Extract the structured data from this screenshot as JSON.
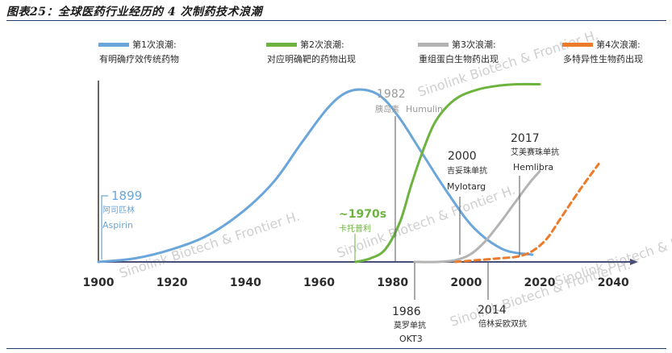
{
  "figure": {
    "title": "图表25：全球医药行业经历的 4 次制药技术浪潮"
  },
  "chart_data": {
    "type": "line",
    "title": "全球医药行业经历的 4 次制药技术浪潮",
    "xlim": [
      1900,
      2045
    ],
    "ylim": [
      0,
      100
    ],
    "x_ticks": [
      1900,
      1920,
      1940,
      1960,
      1980,
      2000,
      2020,
      2040
    ],
    "grid": false,
    "series": [
      {
        "name": "第1次浪潮:",
        "description": "有明确疗效传统药物",
        "color": "#6aa6d9",
        "dash": "solid",
        "x": [
          1900,
          1910,
          1920,
          1930,
          1940,
          1948,
          1955,
          1962,
          1967,
          1972,
          1977,
          1982,
          1988,
          1995,
          2002,
          2010,
          2018
        ],
        "y": [
          0,
          2,
          7,
          15,
          29,
          45,
          65,
          84,
          93,
          95,
          91,
          79,
          60,
          38,
          19,
          7,
          4
        ]
      },
      {
        "name": "第2次浪潮:",
        "description": "对应明确靶的药物出现",
        "color": "#6db33f",
        "dash": "solid",
        "x": [
          1970,
          1974,
          1978,
          1982,
          1985,
          1988,
          1991,
          1994,
          1998,
          2003,
          2008,
          2014,
          2020
        ],
        "y": [
          0,
          2,
          7,
          22,
          42,
          60,
          75,
          84,
          91,
          95,
          97,
          98,
          98
        ]
      },
      {
        "name": "第3次浪潮:",
        "description": "重组蛋白生物药出现",
        "color": "#b3b3b3",
        "dash": "solid",
        "x": [
          1986,
          1992,
          1997,
          2001,
          2005,
          2009,
          2013,
          2017,
          2020
        ],
        "y": [
          0,
          0,
          1,
          4,
          11,
          21,
          32,
          43,
          50
        ]
      },
      {
        "name": "第4次浪潮:",
        "description": "多特异性生物药出现",
        "color": "#ec7a2b",
        "dash": "dashed",
        "x": [
          1997,
          2003,
          2009,
          2014,
          2018,
          2022,
          2026,
          2031,
          2036
        ],
        "y": [
          0,
          1,
          2,
          3,
          6,
          13,
          25,
          40,
          54
        ]
      }
    ],
    "milestones": [
      {
        "year_label": "1899",
        "name": "阿司匹林",
        "latin": "Aspirin",
        "color": "#6aa6d9"
      },
      {
        "year_label": "~1970s",
        "name": "卡托普利",
        "latin": "",
        "color": "#6db33f"
      },
      {
        "year_label": "1982",
        "name": "胰岛素",
        "latin": "Humulin",
        "color": "#9a9a9a"
      },
      {
        "year_label": "1986",
        "name": "莫罗单抗",
        "latin": "OKT3",
        "color": "#2b2b2b"
      },
      {
        "year_label": "2000",
        "name": "吉妥珠单抗",
        "latin": "Mylotarg",
        "color": "#2b2b2b"
      },
      {
        "year_label": "2014",
        "name": "倍林妥欧双抗",
        "latin": "",
        "color": "#2b2b2b"
      },
      {
        "year_label": "2017",
        "name": "艾美赛珠单抗",
        "latin": "Hemlibra",
        "color": "#2b2b2b"
      }
    ],
    "watermark": "Sinolink Biotech & Frontier H."
  }
}
